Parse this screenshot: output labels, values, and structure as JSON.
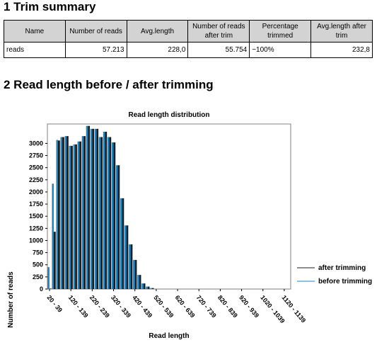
{
  "section1": {
    "heading": "1 Trim summary"
  },
  "summary_table": {
    "headers": [
      "Name",
      "Number of reads",
      "Avg.length",
      "Number of reads after trim",
      "Percentage trimmed",
      "Avg.length after trim"
    ],
    "rows": [
      [
        "reads",
        "57.213",
        "228,0",
        "55.754",
        "~100%",
        "232,8"
      ]
    ]
  },
  "section2": {
    "heading": "2 Read length before / after trimming"
  },
  "chart_data": {
    "type": "bar",
    "title": "Read length distribution",
    "xlabel": "Read length",
    "ylabel": "Number of reads",
    "ylim": [
      0,
      3400
    ],
    "yticks": [
      "0",
      "250",
      "500",
      "750",
      "1000",
      "1250",
      "1500",
      "1750",
      "2000",
      "2250",
      "2500",
      "2750",
      "3000"
    ],
    "xtick_labels": [
      "20 - 39",
      "120 - 139",
      "220 - 239",
      "320 - 339",
      "420 - 439",
      "520 - 539",
      "620 - 639",
      "720 - 739",
      "820 - 839",
      "920 - 939",
      "1020 - 1039",
      "1120 - 1139"
    ],
    "bin_count": 57,
    "series": [
      {
        "name": "before trimming",
        "color": "#1a86c8",
        "values": [
          450,
          2170,
          3070,
          3130,
          3150,
          2950,
          2980,
          3040,
          3150,
          3360,
          3300,
          3300,
          3130,
          3240,
          3130,
          3020,
          2550,
          1870,
          1310,
          920,
          600,
          290,
          115,
          50,
          20,
          0,
          0,
          0,
          0,
          0,
          0,
          0,
          0,
          0,
          0,
          0,
          0,
          0,
          0,
          0,
          0,
          0,
          0,
          0,
          0,
          0,
          0,
          0,
          0,
          0,
          0,
          0,
          0,
          0,
          0,
          0,
          0
        ]
      },
      {
        "name": "after trimming",
        "color": "#1c1c1c",
        "values": [
          10,
          1180,
          3060,
          3130,
          3150,
          2950,
          2980,
          3040,
          3150,
          3360,
          3300,
          3300,
          3130,
          3240,
          3130,
          3020,
          2550,
          1870,
          1310,
          920,
          600,
          290,
          115,
          50,
          20,
          0,
          0,
          0,
          0,
          0,
          0,
          0,
          0,
          0,
          0,
          0,
          0,
          0,
          0,
          0,
          0,
          0,
          0,
          0,
          0,
          0,
          0,
          0,
          0,
          0,
          0,
          0,
          0,
          0,
          0,
          0,
          0
        ]
      }
    ]
  }
}
